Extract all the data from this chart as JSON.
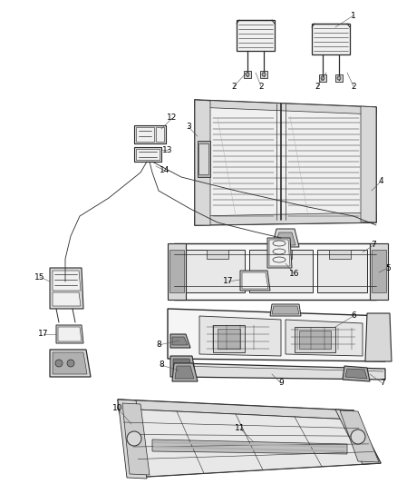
{
  "background_color": "#ffffff",
  "fig_width": 4.38,
  "fig_height": 5.33,
  "dpi": 100,
  "line_color": "#2a2a2a",
  "light_fill": "#f0f0f0",
  "mid_fill": "#d8d8d8",
  "dark_fill": "#b0b0b0",
  "label_fontsize": 6.5,
  "label_color": "#000000",
  "leader_color": "#555555"
}
